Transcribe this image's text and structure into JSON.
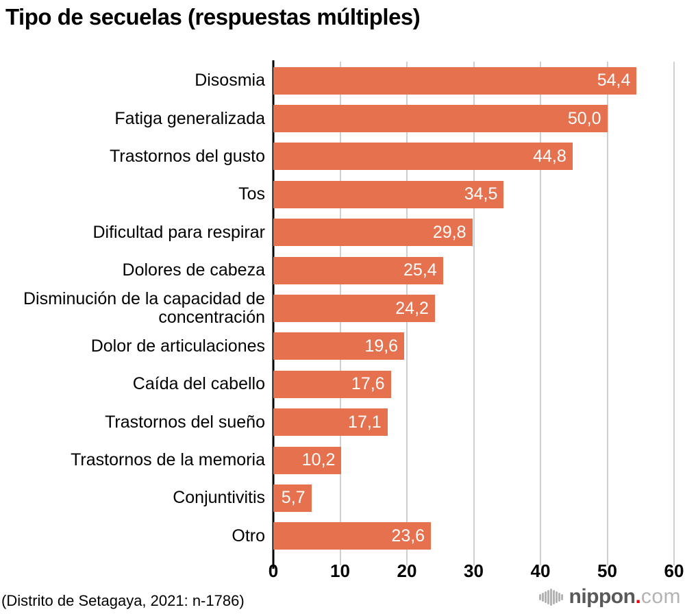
{
  "title": "Tipo de secuelas (respuestas múltiples)",
  "footer": {
    "source_note": "(Distrito de Setagaya, 2021: n-1786)",
    "brand": {
      "icon": "soundwave-icon",
      "name": "nippon",
      "dot": ".",
      "tld": "com"
    }
  },
  "colors": {
    "bar": "#E5714F",
    "grid": "#CFCFCF",
    "axis": "#000000",
    "value_text": "#FFFFFF",
    "brand_name": "#595959",
    "brand_dot": "#E60012",
    "brand_tld": "#B3B3B3",
    "wave_icon": "#B3B3B3"
  },
  "chart_data": {
    "type": "bar",
    "orientation": "horizontal",
    "title": "Tipo de secuelas (respuestas múltiples)",
    "categories": [
      "Disosmia",
      "Fatiga generalizada",
      "Trastornos del gusto",
      "Tos",
      "Dificultad para respirar",
      "Dolores de cabeza",
      "Disminución de la capacidad de concentración",
      "Dolor de articulaciones",
      "Caída del cabello",
      "Trastornos del sueño",
      "Trastornos de la memoria",
      "Conjuntivitis",
      "Otro"
    ],
    "values": [
      54.4,
      50.0,
      44.8,
      34.5,
      29.8,
      25.4,
      24.2,
      19.6,
      17.6,
      17.1,
      10.2,
      5.7,
      23.6
    ],
    "value_labels": [
      "54,4",
      "50,0",
      "44,8",
      "34,5",
      "29,8",
      "25,4",
      "24,2",
      "19,6",
      "17,6",
      "17,1",
      "10,2",
      "5,7",
      "23,6"
    ],
    "xlabel": "",
    "ylabel": "",
    "xlim": [
      0,
      60
    ],
    "xticks": [
      0,
      10,
      20,
      30,
      40,
      50,
      60
    ],
    "grid": "vertical-gridlines",
    "legend": "none",
    "value_label_position": "inside-end",
    "decimal_separator": ","
  },
  "wave_bar_heights": [
    9,
    13,
    17,
    21,
    25,
    21,
    17,
    13,
    9
  ]
}
